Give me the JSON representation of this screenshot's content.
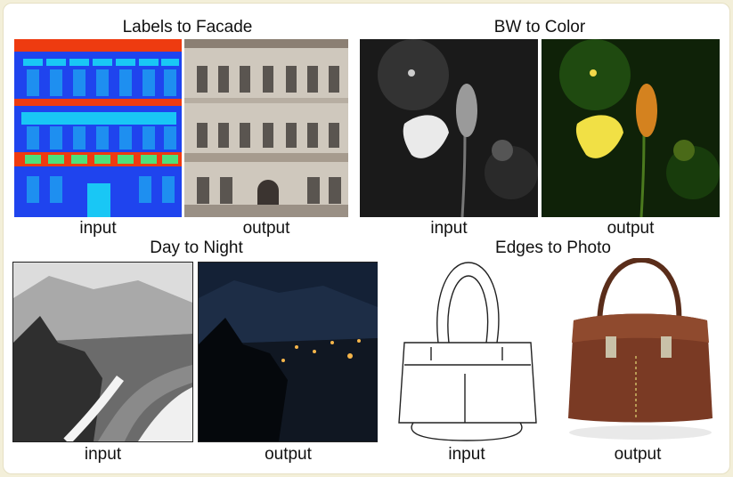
{
  "panels": {
    "facade": {
      "title": "Labels to Facade",
      "input_label": "input",
      "output_label": "output"
    },
    "bw": {
      "title": "BW to Color",
      "input_label": "input",
      "output_label": "output"
    },
    "night": {
      "title": "Day to Night",
      "input_label": "input",
      "output_label": "output"
    },
    "edges": {
      "title": "Edges to Photo",
      "input_label": "input",
      "output_label": "output"
    }
  },
  "colors": {
    "facade_blue": "#1f44ee",
    "facade_red": "#ee3b10",
    "facade_cyan": "#19c7f5",
    "facade_window": "#1e8ff0",
    "facade_green": "#4fe07a",
    "bag_brown": "#7a3a24"
  }
}
